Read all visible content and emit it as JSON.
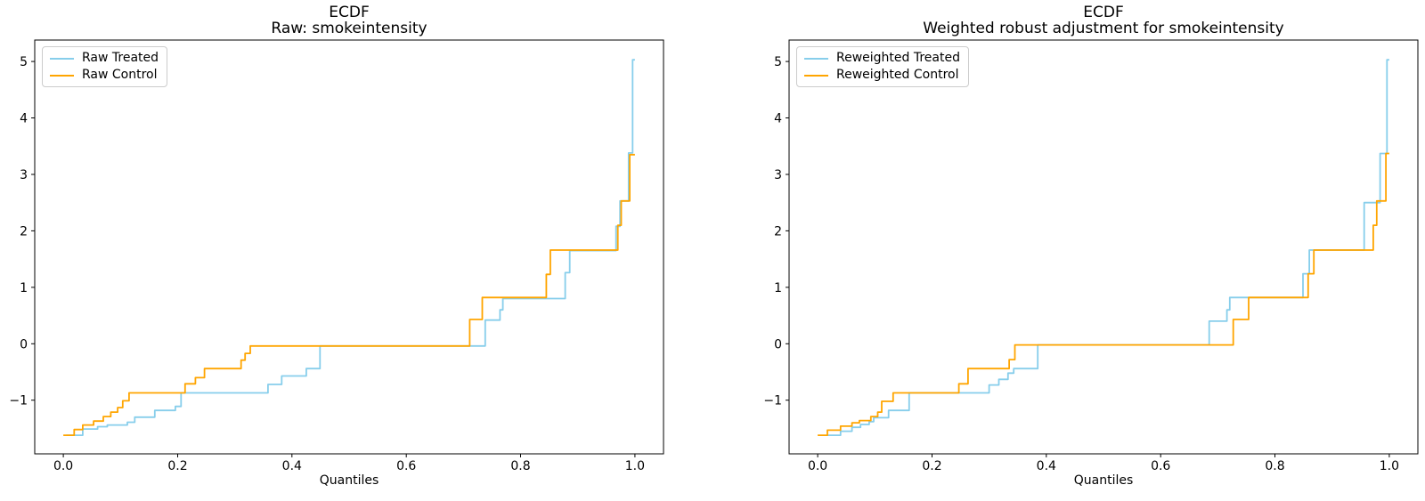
{
  "figure": {
    "background": "#ffffff"
  },
  "colors": {
    "treated": "#87CEEB",
    "control": "#FFA500",
    "spine": "#000000",
    "legend_border": "#cccccc"
  },
  "chart_data": [
    {
      "type": "line",
      "subtype": "ecdf-quantile-step",
      "title_line1": "ECDF",
      "title_line2": "Raw: smokeintensity",
      "xlabel": "Quantiles",
      "xlim": [
        -0.05,
        1.05
      ],
      "ylim": [
        -1.95,
        5.38
      ],
      "grid": false,
      "legend_position": "upper left",
      "xticks": [
        {
          "v": 0.0,
          "label": "0.0"
        },
        {
          "v": 0.2,
          "label": "0.2"
        },
        {
          "v": 0.4,
          "label": "0.4"
        },
        {
          "v": 0.6,
          "label": "0.6"
        },
        {
          "v": 0.8,
          "label": "0.8"
        },
        {
          "v": 1.0,
          "label": "1.0"
        }
      ],
      "yticks": [
        {
          "v": 5,
          "label": "5"
        },
        {
          "v": 4,
          "label": "4"
        },
        {
          "v": 3,
          "label": "3"
        },
        {
          "v": 2,
          "label": "2"
        },
        {
          "v": 1,
          "label": "1"
        },
        {
          "v": 0,
          "label": "0"
        },
        {
          "v": -1,
          "label": "−1"
        }
      ],
      "series": [
        {
          "name": "Raw Treated",
          "color": "#87CEEB",
          "points": [
            [
              0.005,
              -1.62
            ],
            [
              0.034,
              -1.51
            ],
            [
              0.06,
              -1.47
            ],
            [
              0.077,
              -1.44
            ],
            [
              0.112,
              -1.39
            ],
            [
              0.125,
              -1.3
            ],
            [
              0.16,
              -1.18
            ],
            [
              0.196,
              -1.11
            ],
            [
              0.206,
              -0.87
            ],
            [
              0.358,
              -0.72
            ],
            [
              0.382,
              -0.57
            ],
            [
              0.425,
              -0.44
            ],
            [
              0.449,
              -0.04
            ],
            [
              0.738,
              0.42
            ],
            [
              0.764,
              0.6
            ],
            [
              0.769,
              0.8
            ],
            [
              0.878,
              1.26
            ],
            [
              0.886,
              1.65
            ],
            [
              0.967,
              2.08
            ],
            [
              0.974,
              2.53
            ],
            [
              0.989,
              3.38
            ],
            [
              0.996,
              5.03
            ],
            [
              1.0,
              5.03
            ]
          ]
        },
        {
          "name": "Raw Control",
          "color": "#FFA500",
          "points": [
            [
              0.0,
              -1.62
            ],
            [
              0.019,
              -1.52
            ],
            [
              0.034,
              -1.44
            ],
            [
              0.053,
              -1.37
            ],
            [
              0.07,
              -1.29
            ],
            [
              0.083,
              -1.21
            ],
            [
              0.095,
              -1.13
            ],
            [
              0.104,
              -1.01
            ],
            [
              0.115,
              -0.87
            ],
            [
              0.213,
              -0.71
            ],
            [
              0.231,
              -0.6
            ],
            [
              0.247,
              -0.44
            ],
            [
              0.311,
              -0.29
            ],
            [
              0.318,
              -0.17
            ],
            [
              0.327,
              -0.04
            ],
            [
              0.711,
              0.43
            ],
            [
              0.733,
              0.82
            ],
            [
              0.845,
              1.23
            ],
            [
              0.852,
              1.66
            ],
            [
              0.97,
              2.1
            ],
            [
              0.976,
              2.53
            ],
            [
              0.991,
              3.35
            ],
            [
              1.0,
              3.35
            ]
          ]
        }
      ]
    },
    {
      "type": "line",
      "subtype": "ecdf-quantile-step",
      "title_line1": "ECDF",
      "title_line2": "Weighted robust adjustment for smokeintensity",
      "xlabel": "Quantiles",
      "xlim": [
        -0.05,
        1.05
      ],
      "ylim": [
        -1.95,
        5.38
      ],
      "grid": false,
      "legend_position": "upper left",
      "xticks": [
        {
          "v": 0.0,
          "label": "0.0"
        },
        {
          "v": 0.2,
          "label": "0.2"
        },
        {
          "v": 0.4,
          "label": "0.4"
        },
        {
          "v": 0.6,
          "label": "0.6"
        },
        {
          "v": 0.8,
          "label": "0.8"
        },
        {
          "v": 1.0,
          "label": "1.0"
        }
      ],
      "yticks": [
        {
          "v": 5,
          "label": "5"
        },
        {
          "v": 4,
          "label": "4"
        },
        {
          "v": 3,
          "label": "3"
        },
        {
          "v": 2,
          "label": "2"
        },
        {
          "v": 1,
          "label": "1"
        },
        {
          "v": 0,
          "label": "0"
        },
        {
          "v": -1,
          "label": "−1"
        }
      ],
      "series": [
        {
          "name": "Reweighted Treated",
          "color": "#87CEEB",
          "points": [
            [
              0.017,
              -1.62
            ],
            [
              0.04,
              -1.55
            ],
            [
              0.06,
              -1.48
            ],
            [
              0.075,
              -1.43
            ],
            [
              0.09,
              -1.38
            ],
            [
              0.098,
              -1.31
            ],
            [
              0.124,
              -1.18
            ],
            [
              0.16,
              -0.87
            ],
            [
              0.3,
              -0.73
            ],
            [
              0.317,
              -0.63
            ],
            [
              0.333,
              -0.52
            ],
            [
              0.343,
              -0.44
            ],
            [
              0.385,
              -0.02
            ],
            [
              0.685,
              0.4
            ],
            [
              0.716,
              0.6
            ],
            [
              0.721,
              0.82
            ],
            [
              0.849,
              1.24
            ],
            [
              0.86,
              1.66
            ],
            [
              0.956,
              2.5
            ],
            [
              0.984,
              3.37
            ],
            [
              0.996,
              5.03
            ],
            [
              1.0,
              5.03
            ]
          ]
        },
        {
          "name": "Reweighted Control",
          "color": "#FFA500",
          "points": [
            [
              0.0,
              -1.62
            ],
            [
              0.017,
              -1.53
            ],
            [
              0.04,
              -1.46
            ],
            [
              0.06,
              -1.4
            ],
            [
              0.073,
              -1.36
            ],
            [
              0.093,
              -1.29
            ],
            [
              0.105,
              -1.21
            ],
            [
              0.112,
              -1.02
            ],
            [
              0.132,
              -0.87
            ],
            [
              0.247,
              -0.71
            ],
            [
              0.263,
              -0.44
            ],
            [
              0.335,
              -0.28
            ],
            [
              0.345,
              -0.02
            ],
            [
              0.727,
              0.43
            ],
            [
              0.754,
              0.82
            ],
            [
              0.858,
              1.24
            ],
            [
              0.868,
              1.66
            ],
            [
              0.972,
              2.1
            ],
            [
              0.978,
              2.53
            ],
            [
              0.994,
              3.37
            ],
            [
              1.0,
              3.37
            ]
          ]
        }
      ]
    }
  ]
}
